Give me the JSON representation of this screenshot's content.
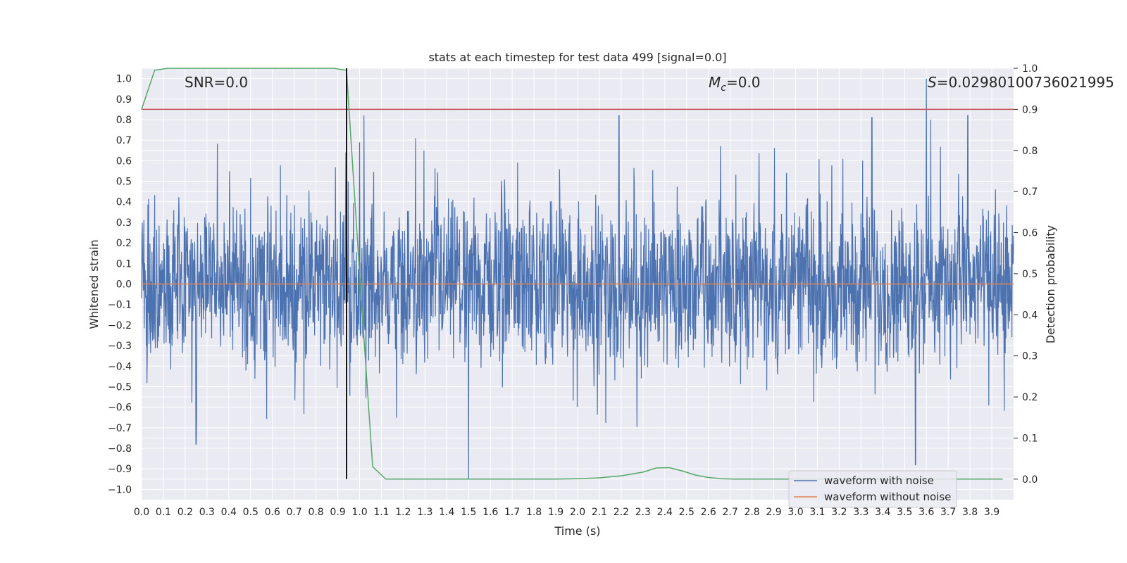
{
  "chart_data": {
    "type": "line",
    "title": "stats at each timestep for test data 499 [signal=0.0]",
    "xlabel": "Time (s)",
    "ylabel_left": "Whitened strain",
    "ylabel_right": "Detection probability",
    "xlim": [
      0.0,
      4.0
    ],
    "ylim_left": [
      -1.05,
      1.05
    ],
    "ylim_right": [
      -0.05,
      1.0
    ],
    "x_ticks": [
      "0.0",
      "0.1",
      "0.2",
      "0.3",
      "0.4",
      "0.5",
      "0.6",
      "0.7",
      "0.8",
      "0.9",
      "1.0",
      "1.1",
      "1.2",
      "1.3",
      "1.4",
      "1.5",
      "1.6",
      "1.7",
      "1.8",
      "1.9",
      "2.0",
      "2.1",
      "2.2",
      "2.3",
      "2.4",
      "2.5",
      "2.6",
      "2.7",
      "2.8",
      "2.9",
      "3.0",
      "3.1",
      "3.2",
      "3.3",
      "3.4",
      "3.5",
      "3.6",
      "3.7",
      "3.8",
      "3.9"
    ],
    "y_ticks_left": [
      "1.0",
      "0.9",
      "0.8",
      "0.7",
      "0.6",
      "0.5",
      "0.4",
      "0.3",
      "0.2",
      "0.1",
      "0.0",
      "-0.1",
      "-0.2",
      "-0.3",
      "-0.4",
      "-0.5",
      "-0.6",
      "-0.7",
      "-0.8",
      "-0.9",
      "-1.0"
    ],
    "y_ticks_right": [
      "1.0",
      "0.9",
      "0.8",
      "0.7",
      "0.6",
      "0.5",
      "0.4",
      "0.3",
      "0.2",
      "0.1",
      "0.0"
    ],
    "annotations": {
      "snr": "SNR=0.0",
      "mc_symbol": "M",
      "mc_sub": "c",
      "mc_value": "=0.0",
      "s_symbol": "S",
      "s_value": "=0.02980100736021995"
    },
    "grid": true,
    "legend_position": "lower-right",
    "series": [
      {
        "name": "waveform with noise",
        "color": "#4c72b0",
        "axis": "left",
        "kind": "noise",
        "t_start": 0.0,
        "t_end": 4.0,
        "amplitude_range": [
          -0.95,
          1.0
        ],
        "peaks": [
          {
            "x": 1.02,
            "y": 0.82
          },
          {
            "x": 2.19,
            "y": 0.82
          },
          {
            "x": 3.6,
            "y": 1.0
          },
          {
            "x": 3.62,
            "y": 0.8
          },
          {
            "x": 3.35,
            "y": 0.81
          },
          {
            "x": 3.79,
            "y": 0.82
          },
          {
            "x": 1.5,
            "y": -0.95
          },
          {
            "x": 3.55,
            "y": -0.88
          },
          {
            "x": 0.25,
            "y": -0.78
          }
        ]
      },
      {
        "name": "waveform without noise",
        "color": "#dd8452",
        "axis": "left",
        "x": [
          0.0,
          4.0
        ],
        "y": [
          0.0,
          0.0
        ]
      },
      {
        "name": "",
        "color": "#55a868",
        "axis": "right",
        "x": [
          0.0,
          0.06,
          0.12,
          0.18,
          0.24,
          0.3,
          0.36,
          0.42,
          0.48,
          0.54,
          0.6,
          0.66,
          0.72,
          0.78,
          0.84,
          0.88,
          0.94,
          1.0,
          1.06,
          1.12,
          1.18,
          1.3,
          1.5,
          1.7,
          1.9,
          2.0,
          2.1,
          2.2,
          2.3,
          2.36,
          2.42,
          2.48,
          2.54,
          2.6,
          2.66,
          2.72,
          2.8,
          3.0,
          3.2,
          3.4,
          3.6,
          3.8,
          3.95
        ],
        "y": [
          0.9,
          0.995,
          1.0,
          1.0,
          1.0,
          1.0,
          1.0,
          1.0,
          1.0,
          1.0,
          1.0,
          1.0,
          1.0,
          1.0,
          1.0,
          1.0,
          0.995,
          0.5,
          0.03,
          0.0,
          0.0,
          0.0,
          0.0,
          0.0,
          0.0,
          0.001,
          0.003,
          0.008,
          0.017,
          0.027,
          0.028,
          0.02,
          0.01,
          0.004,
          0.001,
          0.0,
          0.0,
          0.0,
          0.0,
          0.0,
          0.0,
          0.0,
          0.0
        ]
      }
    ],
    "threshold": {
      "color": "#c44e52",
      "axis": "right",
      "y": 0.9
    },
    "marker_line": {
      "color": "#000000",
      "x": 0.94,
      "y_from": 0.0,
      "y_to": 1.0
    }
  }
}
